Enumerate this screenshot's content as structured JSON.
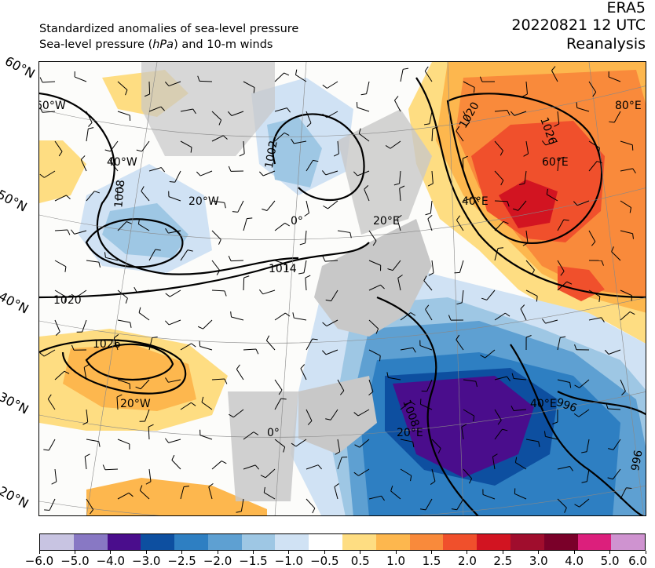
{
  "header": {
    "title_line1": "Standardized anomalies of sea-level pressure",
    "title_line2_prefix": "Sea-level pressure (",
    "title_line2_unit": "hPa",
    "title_line2_suffix": ") and 10-m winds",
    "source": "ERA5",
    "datetime": "20220821 12 UTC",
    "product": "Reanalysis"
  },
  "map": {
    "lat_labels": [
      "60°N",
      "50°N",
      "40°N",
      "30°N",
      "20°N"
    ],
    "lon_labels": [
      "60°W",
      "40°W",
      "20°W",
      "0°",
      "20°E",
      "40°E",
      "60°E",
      "80°E",
      "20°W",
      "0°",
      "20°E",
      "40°E"
    ],
    "isobar_labels": [
      "1002",
      "1008",
      "1014",
      "1020",
      "1026",
      "1020",
      "1026",
      "1008",
      "996",
      "996"
    ],
    "colors": {
      "land": "#c8c8c8",
      "ocean": "#fcfcfa",
      "isobar": "#000000",
      "coast": "#6e6e6e"
    }
  },
  "colorbar": {
    "colors": [
      "#c8c4e2",
      "#8878c4",
      "#4a0d8c",
      "#0d4fa0",
      "#2e7fc2",
      "#5ea0d2",
      "#9ec7e4",
      "#d0e2f4",
      "#ffffff",
      "#fedd82",
      "#fdb74e",
      "#f98a3b",
      "#f0502c",
      "#d21421",
      "#a00d2d",
      "#7a0029",
      "#dc1f7c",
      "#cf93d0"
    ],
    "ticks": [
      "−6.0",
      "−5.0",
      "−4.0",
      "−3.0",
      "−2.5",
      "−2.0",
      "−1.5",
      "−1.0",
      "−0.5",
      "0.5",
      "1.0",
      "1.5",
      "2.0",
      "2.5",
      "3.0",
      "4.0",
      "5.0",
      "6.0"
    ]
  }
}
